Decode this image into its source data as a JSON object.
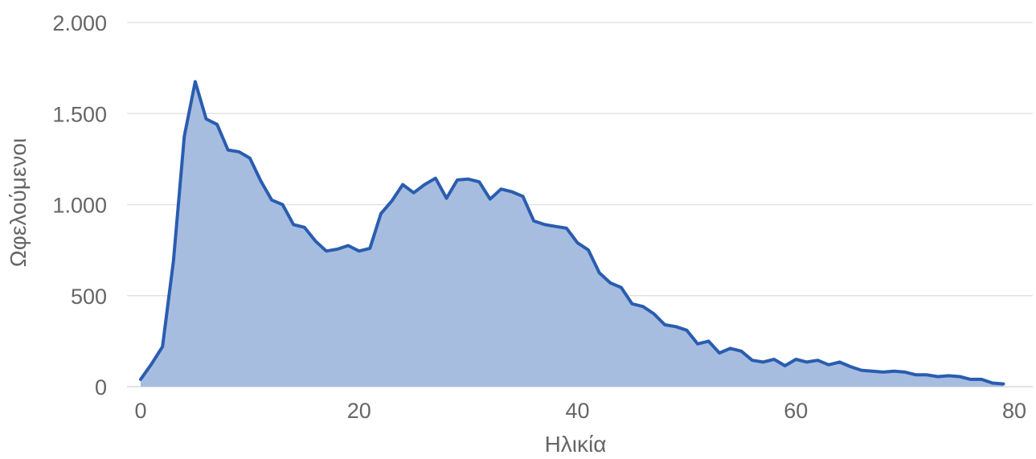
{
  "chart_data": {
    "type": "area",
    "title": "",
    "xlabel": "Ηλικία",
    "ylabel": "Ωφελούμενοι",
    "xlim": [
      0,
      80
    ],
    "ylim": [
      0,
      2000
    ],
    "x_ticks": [
      0,
      20,
      40,
      60,
      80
    ],
    "x_tick_labels": [
      "0",
      "20",
      "40",
      "60",
      "80"
    ],
    "y_ticks": [
      0,
      500,
      1000,
      1500,
      2000
    ],
    "y_tick_labels": [
      "0",
      "500",
      "1.000",
      "1.500",
      "2.000"
    ],
    "grid": true,
    "legend": "none",
    "colors": {
      "line": "#2a5db0",
      "fill": "#a7bde0",
      "grid": "#e3e3e3",
      "text": "#666666"
    },
    "series": [
      {
        "x": [
          0,
          1,
          2,
          3,
          4,
          5,
          6,
          7,
          8,
          9,
          10,
          11,
          12,
          13,
          14,
          15,
          16,
          17,
          18,
          19,
          20,
          21,
          22,
          23,
          24,
          25,
          26,
          27,
          28,
          29,
          30,
          31,
          32,
          33,
          34,
          35,
          36,
          37,
          38,
          39,
          40,
          41,
          42,
          43,
          44,
          45,
          46,
          47,
          48,
          49,
          50,
          51,
          52,
          53,
          54,
          55,
          56,
          57,
          58,
          59,
          60,
          61,
          62,
          63,
          64,
          65,
          66,
          67,
          68,
          69,
          70,
          71,
          72,
          73,
          74,
          75,
          76,
          77,
          78,
          79
        ],
        "y": [
          40,
          125,
          220,
          690,
          1375,
          1675,
          1470,
          1440,
          1300,
          1290,
          1255,
          1130,
          1025,
          1000,
          890,
          875,
          800,
          745,
          755,
          775,
          745,
          760,
          950,
          1020,
          1110,
          1065,
          1110,
          1145,
          1035,
          1135,
          1140,
          1125,
          1030,
          1085,
          1070,
          1045,
          910,
          890,
          880,
          870,
          790,
          750,
          625,
          570,
          545,
          455,
          440,
          400,
          340,
          330,
          310,
          235,
          250,
          185,
          210,
          195,
          145,
          135,
          150,
          115,
          150,
          135,
          145,
          120,
          135,
          110,
          90,
          85,
          80,
          85,
          80,
          65,
          65,
          55,
          60,
          55,
          40,
          40,
          20,
          15
        ]
      }
    ]
  }
}
